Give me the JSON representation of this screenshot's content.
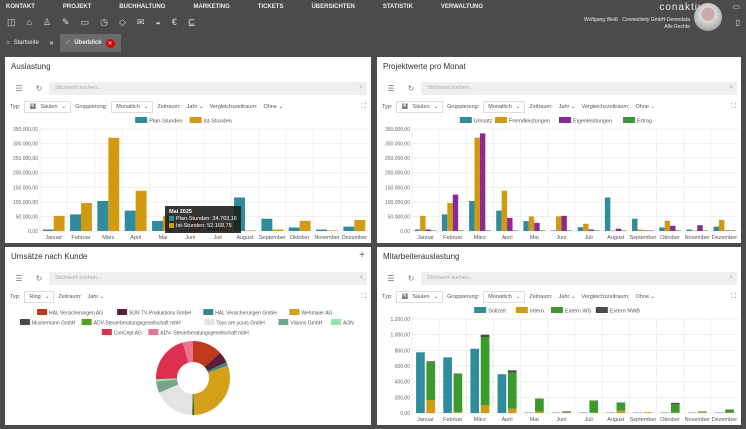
{
  "menu": [
    "KONTAKT",
    "PROJEKT",
    "BUCHHALTUNG",
    "MARKETING",
    "TICKETS",
    "ÜBERSICHTEN",
    "STATISTIK",
    "VERWALTUNG"
  ],
  "toolbar_icons": [
    "sidebar-icon",
    "home-icon",
    "user-icon",
    "edit-icon",
    "window-icon",
    "timer-icon",
    "tag-icon",
    "mail-icon",
    "car-icon",
    "euro-icon",
    "chair-icon"
  ],
  "tabs": [
    {
      "label": "Startseite",
      "icon": "home-icon"
    },
    {
      "label": "Überblick",
      "icon": "chart-line-icon"
    }
  ],
  "brand": "conaktiv",
  "user": {
    "name": "Wolfgang Weiß",
    "company": "Connectivity GmbH-Demodata",
    "rights": "Alle Rechte"
  },
  "search_placeholder": "Stichwort suchen...",
  "labels": {
    "typ": "Typ:",
    "gruppierung": "Gruppierung:",
    "zeitraum": "Zeitraum:",
    "vergleich": "Vergleichszeitraum:"
  },
  "values": {
    "saeulen": "Säulen",
    "monatlich": "Monatlich",
    "jahr": "Jahr",
    "ohne": "Ohne",
    "ring": "Ring"
  },
  "panels": {
    "p1": "Auslastung",
    "p2": "Projektwerte pro Monat",
    "p3": "Umsätze nach Kunde",
    "p4": "Mitarbeiterauslastung"
  },
  "tooltip": {
    "title": "Mai 2025",
    "line1": "Plan-Stunden: 34.763,16",
    "line2": "Ist-Stunden: 52.168,75"
  },
  "chart_data": [
    {
      "type": "bar",
      "title": "Auslastung",
      "ylim": [
        0,
        350000
      ],
      "yticks": [
        "0,00",
        "50.000,00",
        "100.000,00",
        "150.000,00",
        "200.000,00",
        "250.000,00",
        "300.000,00",
        "350.000,00"
      ],
      "categories": [
        "Januar",
        "Februar",
        "März",
        "April",
        "Mai",
        "Juni",
        "Juli",
        "August",
        "September",
        "Oktober",
        "November",
        "Dezember"
      ],
      "series": [
        {
          "name": "Plan-Stunden",
          "color": "#2e8c9c",
          "values": [
            5000,
            57000,
            103000,
            70000,
            34763,
            2000,
            13000,
            115000,
            42000,
            12000,
            5000,
            15000
          ]
        },
        {
          "name": "Ist-Stunden",
          "color": "#d19a0f",
          "values": [
            52000,
            96000,
            320000,
            138000,
            52169,
            50000,
            25000,
            2000,
            5000,
            35000,
            2000,
            38000
          ]
        }
      ]
    },
    {
      "type": "bar",
      "title": "Projektwerte pro Monat",
      "ylim": [
        0,
        350000
      ],
      "yticks": [
        "0,00",
        "50.000,00",
        "100.000,00",
        "150.000,00",
        "200.000,00",
        "250.000,00",
        "300.000,00",
        "350.000,00"
      ],
      "categories": [
        "Januar",
        "Februar",
        "März",
        "April",
        "Mai",
        "Juni",
        "Juli",
        "August",
        "September",
        "Oktober",
        "November",
        "Dezember"
      ],
      "series": [
        {
          "name": "Umsatz",
          "color": "#2e8c9c",
          "values": [
            5000,
            57000,
            103000,
            70000,
            34000,
            2000,
            13000,
            115000,
            42000,
            12000,
            5000,
            15000
          ]
        },
        {
          "name": "Fremdleistungen",
          "color": "#d19a0f",
          "values": [
            52000,
            96000,
            320000,
            138000,
            50000,
            50000,
            25000,
            2000,
            5000,
            35000,
            2000,
            38000
          ]
        },
        {
          "name": "Eigenleistungen",
          "color": "#8a2a92",
          "values": [
            5000,
            125000,
            335000,
            45000,
            28000,
            52000,
            5000,
            8000,
            2000,
            18000,
            20000,
            2000
          ]
        },
        {
          "name": "Ertrag",
          "color": "#3a9a3a",
          "values": [
            2000,
            2000,
            2000,
            2000,
            2000,
            2000,
            2000,
            2000,
            2000,
            2000,
            2000,
            2000
          ]
        }
      ]
    },
    {
      "type": "pie",
      "title": "Umsätze nach Kunde",
      "donut": true,
      "slices": [
        {
          "name": "HAL Versicherungen AG",
          "color": "#c0391b",
          "value": 13
        },
        {
          "name": "SUN TV-Produktions GmbH",
          "color": "#5a1e3a",
          "value": 5
        },
        {
          "name": "HAL Versicherungen GmbH",
          "color": "#2e8a94",
          "value": 1.5
        },
        {
          "name": "Wehmaier AG",
          "color": "#d4a017",
          "value": 30
        },
        {
          "name": "Mustermann GmbH",
          "color": "#4a4a4a",
          "value": 0.5
        },
        {
          "name": "ADV-Steuerberatungsgesellschaft mbH",
          "color": "#4aa81a",
          "value": 0.5
        },
        {
          "name": "Toys are yours GmbH",
          "color": "#e3e3e3",
          "value": 18
        },
        {
          "name": "Visions GmbH",
          "color": "#6fa88a",
          "value": 5
        },
        {
          "name": "AON",
          "color": "#8ee6b0",
          "value": 1
        },
        {
          "name": "ConCept AG",
          "color": "#e0304f",
          "value": 21
        },
        {
          "name": "ADV- Steuerberatungsgesellschaft mbH",
          "color": "#e8748f",
          "value": 4.5
        }
      ]
    },
    {
      "type": "bar",
      "title": "Mitarbeiterauslastung",
      "stacked_groups": true,
      "ylim": [
        0,
        1200
      ],
      "yticks": [
        "0,00",
        "200,00",
        "400,00",
        "600,00",
        "800,00",
        "1.000,00",
        "1.200,00"
      ],
      "categories": [
        "Januar",
        "Februar",
        "März",
        "April",
        "Mai",
        "Juni",
        "Juli",
        "August",
        "September",
        "Oktober",
        "November",
        "Dezember"
      ],
      "series": [
        {
          "name": "Sollzeit",
          "color": "#2e8c9c",
          "stack": "a",
          "values": [
            775,
            710,
            820,
            495,
            5,
            5,
            5,
            5,
            5,
            5,
            5,
            5
          ]
        },
        {
          "name": "Intern",
          "color": "#d19a0f",
          "stack": "b",
          "values": [
            165,
            10,
            100,
            55,
            20,
            5,
            5,
            30,
            10,
            5,
            10,
            5
          ]
        },
        {
          "name": "Extern WS",
          "color": "#3a9a2a",
          "stack": "b",
          "values": [
            485,
            490,
            870,
            460,
            160,
            5,
            150,
            100,
            0,
            110,
            5,
            35
          ]
        },
        {
          "name": "Extern NWB",
          "color": "#4a4a4a",
          "stack": "b",
          "values": [
            10,
            5,
            30,
            30,
            5,
            10,
            5,
            5,
            0,
            15,
            5,
            5
          ]
        }
      ]
    }
  ]
}
